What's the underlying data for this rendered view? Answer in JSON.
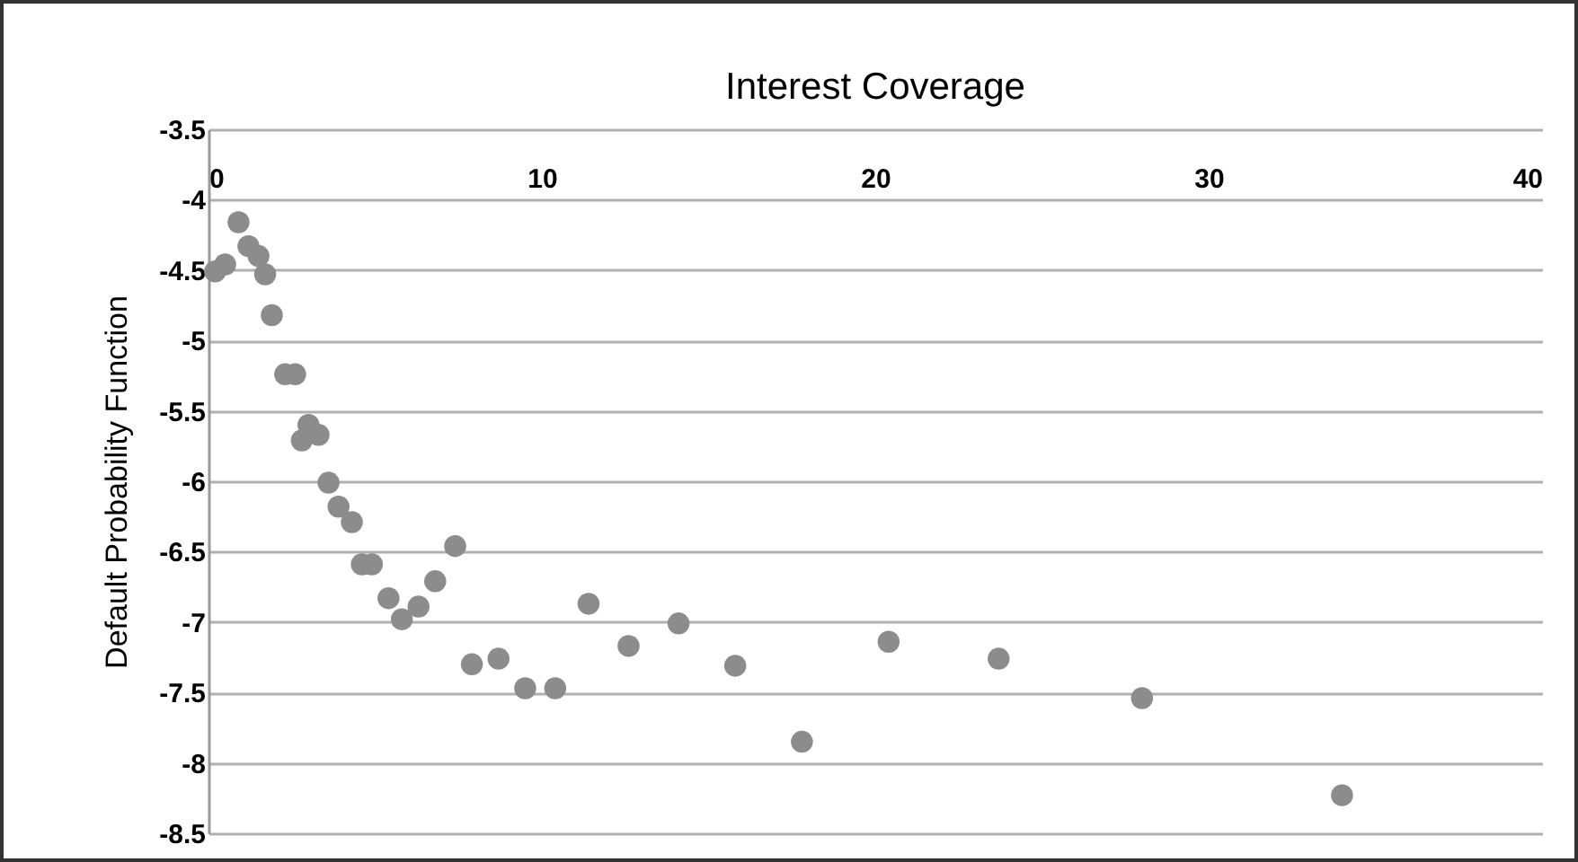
{
  "chart_data": {
    "type": "scatter",
    "title": "Interest Coverage",
    "ylabel": "Default Probability Function",
    "x": [
      0.2,
      0.5,
      0.9,
      1.2,
      1.5,
      1.7,
      1.9,
      2.3,
      2.6,
      2.8,
      3.0,
      3.3,
      3.6,
      3.9,
      4.3,
      4.6,
      4.9,
      5.4,
      5.8,
      6.3,
      6.8,
      7.4,
      7.9,
      8.7,
      9.5,
      10.4,
      11.4,
      12.6,
      14.1,
      15.8,
      17.8,
      20.4,
      23.7,
      28.0,
      34.0
    ],
    "series": [
      {
        "color": "#8c8c8c",
        "values": [
          -4.51,
          -4.46,
          -4.16,
          -4.33,
          -4.4,
          -4.53,
          -4.82,
          -5.24,
          -5.24,
          -5.71,
          -5.6,
          -5.67,
          -6.01,
          -6.18,
          -6.29,
          -6.59,
          -6.59,
          -6.83,
          -6.98,
          -6.89,
          -6.71,
          -6.46,
          -7.3,
          -7.26,
          -7.47,
          -7.47,
          -6.87,
          -7.17,
          -7.01,
          -7.31,
          -7.85,
          -7.14,
          -7.26,
          -7.54,
          -8.23
        ]
      }
    ],
    "xlim": [
      0,
      40
    ],
    "xticks": [
      0,
      10,
      20,
      30,
      40
    ],
    "ylim": [
      -8.5,
      -3.5
    ],
    "yticks": [
      -8.5,
      -8,
      -7.5,
      -7,
      -6.5,
      -6,
      -5.5,
      -5,
      -4.5,
      -4,
      -3.5
    ],
    "grid": "y",
    "marker": "circle"
  }
}
